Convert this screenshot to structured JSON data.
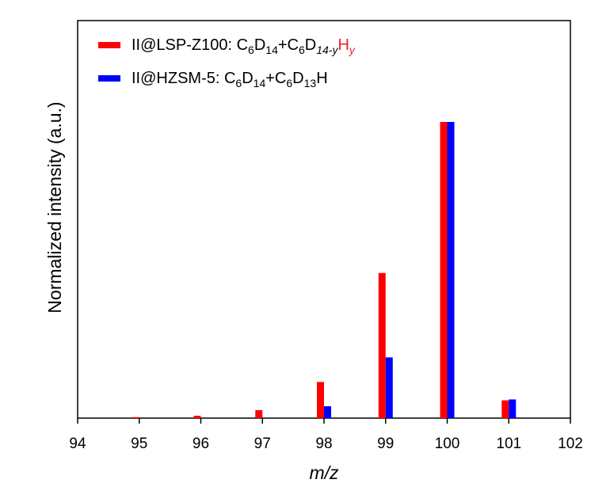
{
  "chart_data": {
    "type": "bar",
    "xlabel": "m/z",
    "ylabel": "Normalized intensity (a.u.)",
    "xlim": [
      94,
      102
    ],
    "ylim": [
      0,
      1.15
    ],
    "x_ticks": [
      "94",
      "95",
      "96",
      "97",
      "98",
      "99",
      "100",
      "101",
      "102"
    ],
    "y_ticks_shown": false,
    "grid": false,
    "legend_position": "top-left",
    "categories": [
      95,
      96,
      97,
      98,
      99,
      100,
      101
    ],
    "series": [
      {
        "name": "II@LSP-Z100: C6D14+C6D14-yHy",
        "color": "#ff0000",
        "values": [
          0.003,
          0.008,
          0.027,
          0.122,
          0.49,
          1.0,
          0.06
        ]
      },
      {
        "name": "II@HZSM-5: C6D14+C6D13H",
        "color": "#0000ff",
        "values": [
          0.0,
          0.0,
          0.0,
          0.04,
          0.205,
          1.0,
          0.063
        ]
      }
    ],
    "legend": [
      {
        "color": "#ff0000",
        "parts": [
          {
            "text": "II@LSP-Z100: C",
            "style": "normal"
          },
          {
            "text": "6",
            "style": "sub"
          },
          {
            "text": "D",
            "style": "normal"
          },
          {
            "text": "14",
            "style": "sub"
          },
          {
            "text": "+C",
            "style": "normal"
          },
          {
            "text": "6",
            "style": "sub"
          },
          {
            "text": "D",
            "style": "normal"
          },
          {
            "text": "14-y",
            "style": "sub-italic"
          },
          {
            "text": "H",
            "style": "red"
          },
          {
            "text": "y",
            "style": "sub-italic-red"
          }
        ]
      },
      {
        "color": "#0000ff",
        "parts": [
          {
            "text": "II@HZSM-5: C",
            "style": "normal"
          },
          {
            "text": "6",
            "style": "sub"
          },
          {
            "text": "D",
            "style": "normal"
          },
          {
            "text": "14",
            "style": "sub"
          },
          {
            "text": "+C",
            "style": "normal"
          },
          {
            "text": "6",
            "style": "sub"
          },
          {
            "text": "D",
            "style": "normal"
          },
          {
            "text": "13",
            "style": "sub"
          },
          {
            "text": "H",
            "style": "normal"
          }
        ]
      }
    ]
  }
}
